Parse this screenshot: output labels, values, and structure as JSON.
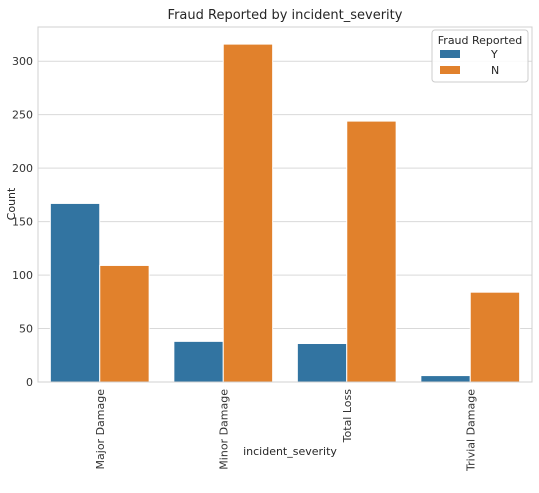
{
  "chart_data": {
    "type": "bar",
    "title": "Fraud Reported by incident_severity",
    "xlabel": "incident_severity",
    "ylabel": "Count",
    "categories": [
      "Major Damage",
      "Minor Damage",
      "Total Loss",
      "Trivial Damage"
    ],
    "series": [
      {
        "name": "Y",
        "values": [
          167,
          38,
          36,
          6
        ],
        "color": "#3274a1"
      },
      {
        "name": "N",
        "values": [
          109,
          316,
          244,
          84
        ],
        "color": "#e1812c"
      }
    ],
    "ylim": [
      0,
      332
    ],
    "yticks": [
      0,
      50,
      100,
      150,
      200,
      250,
      300
    ],
    "grid": "horizontal",
    "legend": {
      "title": "Fraud Reported",
      "placement": "top-right"
    }
  }
}
